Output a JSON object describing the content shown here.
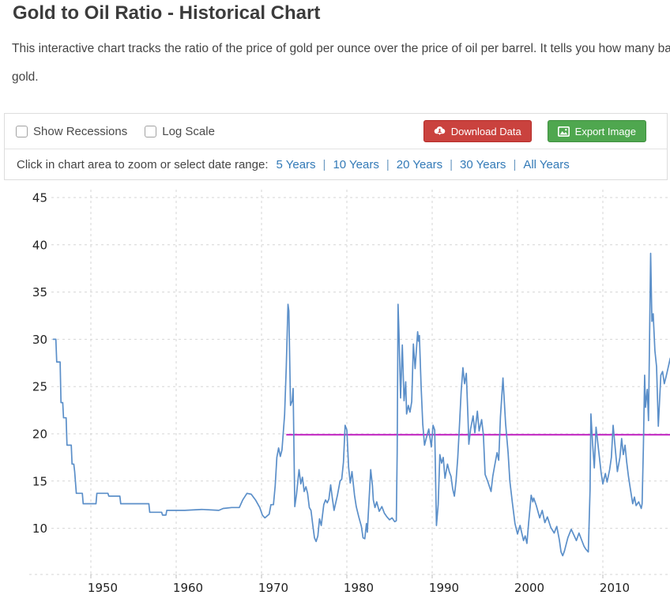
{
  "page": {
    "title": "Gold to Oil Ratio - Historical Chart",
    "description_line1": "This interactive chart tracks the ratio of the price of gold per ounce over the price of oil per barrel. It tells you how many barrels of oil you can buy with one ounce of",
    "description_line2": "gold."
  },
  "toolbar": {
    "checkboxes": [
      {
        "label": "Show Recessions",
        "checked": false
      },
      {
        "label": "Log Scale",
        "checked": false
      }
    ],
    "download_button": {
      "label": "Download Data",
      "color": "#ca423e",
      "icon": "cloud-download-icon"
    },
    "export_button": {
      "label": "Export Image",
      "color": "#4fa74f",
      "icon": "image-icon"
    },
    "zoom_hint": "Click in chart area to zoom or select date range:",
    "separator": "|",
    "link_color": "#337ab7",
    "range_links": [
      {
        "label": "5 Years"
      },
      {
        "label": "10 Years"
      },
      {
        "label": "20 Years"
      },
      {
        "label": "30 Years"
      },
      {
        "label": "All Years"
      }
    ]
  },
  "chart_data": {
    "type": "line",
    "title": "Gold to Oil Ratio - Historical Chart",
    "xlabel": "",
    "ylabel": "",
    "grid": true,
    "x_ticks": [
      1950,
      1960,
      1970,
      1980,
      1990,
      2000,
      2010
    ],
    "y_ticks": [
      10,
      15,
      20,
      25,
      30,
      35,
      40,
      45
    ],
    "xlim": [
      1945.6,
      2017.9
    ],
    "ylim": [
      5.1,
      45.8
    ],
    "line_color": "#5b8fc9",
    "grid_color": "#d6d6d6",
    "axis_label_color": "#222222",
    "reference_line": {
      "value": 19.9,
      "start_year": 1972.9,
      "color": "#c32cc3"
    },
    "series": [
      {
        "name": "Gold to Oil Ratio",
        "points": [
          [
            1945.6,
            30
          ],
          [
            1945.9,
            30
          ],
          [
            1946.0,
            27.6
          ],
          [
            1946.4,
            27.6
          ],
          [
            1946.5,
            23.3
          ],
          [
            1946.7,
            23.3
          ],
          [
            1946.8,
            21.7
          ],
          [
            1947.1,
            21.7
          ],
          [
            1947.2,
            18.8
          ],
          [
            1947.7,
            18.8
          ],
          [
            1947.8,
            16.8
          ],
          [
            1948.0,
            16.8
          ],
          [
            1948.1,
            16.0
          ],
          [
            1948.3,
            13.7
          ],
          [
            1949.0,
            13.7
          ],
          [
            1949.1,
            12.6
          ],
          [
            1950.6,
            12.6
          ],
          [
            1950.7,
            13.7
          ],
          [
            1952.0,
            13.7
          ],
          [
            1952.1,
            13.4
          ],
          [
            1953.4,
            13.4
          ],
          [
            1953.5,
            12.6
          ],
          [
            1956.8,
            12.6
          ],
          [
            1956.9,
            11.7
          ],
          [
            1958.3,
            11.7
          ],
          [
            1958.4,
            11.4
          ],
          [
            1958.8,
            11.4
          ],
          [
            1958.9,
            11.9
          ],
          [
            1961.0,
            11.9
          ],
          [
            1963.0,
            12.0
          ],
          [
            1965.0,
            11.9
          ],
          [
            1965.5,
            12.1
          ],
          [
            1966.5,
            12.2
          ],
          [
            1967.4,
            12.2
          ],
          [
            1967.8,
            13.0
          ],
          [
            1968.3,
            13.7
          ],
          [
            1968.8,
            13.6
          ],
          [
            1969.3,
            13.0
          ],
          [
            1969.8,
            12.2
          ],
          [
            1970.1,
            11.4
          ],
          [
            1970.4,
            11.1
          ],
          [
            1970.9,
            11.5
          ],
          [
            1971.1,
            12.5
          ],
          [
            1971.4,
            12.5
          ],
          [
            1971.6,
            14.5
          ],
          [
            1971.8,
            17.5
          ],
          [
            1972.0,
            18.5
          ],
          [
            1972.2,
            17.6
          ],
          [
            1972.4,
            18.3
          ],
          [
            1972.7,
            22.0
          ],
          [
            1972.9,
            27.0
          ],
          [
            1973.1,
            33.7
          ],
          [
            1973.2,
            33.0
          ],
          [
            1973.4,
            23.0
          ],
          [
            1973.6,
            23.5
          ],
          [
            1973.7,
            24.8
          ],
          [
            1973.9,
            12.3
          ],
          [
            1974.1,
            13.6
          ],
          [
            1974.4,
            16.2
          ],
          [
            1974.6,
            14.7
          ],
          [
            1974.8,
            15.4
          ],
          [
            1975.0,
            13.9
          ],
          [
            1975.2,
            14.4
          ],
          [
            1975.4,
            13.7
          ],
          [
            1975.6,
            12.2
          ],
          [
            1975.8,
            11.9
          ],
          [
            1976.0,
            10.4
          ],
          [
            1976.2,
            9.0
          ],
          [
            1976.4,
            8.6
          ],
          [
            1976.6,
            9.2
          ],
          [
            1976.8,
            11.0
          ],
          [
            1977.0,
            10.3
          ],
          [
            1977.3,
            12.5
          ],
          [
            1977.5,
            13.0
          ],
          [
            1977.7,
            12.7
          ],
          [
            1977.9,
            13.1
          ],
          [
            1978.1,
            14.6
          ],
          [
            1978.3,
            13.2
          ],
          [
            1978.5,
            11.9
          ],
          [
            1978.9,
            13.5
          ],
          [
            1979.2,
            15.0
          ],
          [
            1979.4,
            15.2
          ],
          [
            1979.6,
            17.0
          ],
          [
            1979.8,
            20.9
          ],
          [
            1980.0,
            20.4
          ],
          [
            1980.2,
            16.5
          ],
          [
            1980.4,
            14.8
          ],
          [
            1980.6,
            16.0
          ],
          [
            1980.9,
            13.5
          ],
          [
            1981.1,
            12.3
          ],
          [
            1981.4,
            11.2
          ],
          [
            1981.7,
            10.2
          ],
          [
            1981.9,
            9.0
          ],
          [
            1982.1,
            8.9
          ],
          [
            1982.3,
            10.5
          ],
          [
            1982.4,
            9.6
          ],
          [
            1982.6,
            13.0
          ],
          [
            1982.8,
            16.2
          ],
          [
            1983.0,
            14.5
          ],
          [
            1983.1,
            13.0
          ],
          [
            1983.3,
            12.2
          ],
          [
            1983.5,
            12.8
          ],
          [
            1983.8,
            11.8
          ],
          [
            1984.1,
            12.3
          ],
          [
            1984.4,
            11.6
          ],
          [
            1984.7,
            11.2
          ],
          [
            1985.0,
            10.9
          ],
          [
            1985.3,
            11.1
          ],
          [
            1985.6,
            10.7
          ],
          [
            1985.8,
            10.8
          ],
          [
            1985.9,
            18.0
          ],
          [
            1986.0,
            33.7
          ],
          [
            1986.1,
            30.9
          ],
          [
            1986.3,
            23.8
          ],
          [
            1986.5,
            29.4
          ],
          [
            1986.7,
            23.5
          ],
          [
            1986.9,
            25.5
          ],
          [
            1987.0,
            22.1
          ],
          [
            1987.2,
            23.0
          ],
          [
            1987.4,
            22.3
          ],
          [
            1987.6,
            23.4
          ],
          [
            1987.8,
            29.5
          ],
          [
            1988.0,
            26.9
          ],
          [
            1988.3,
            30.8
          ],
          [
            1988.4,
            29.8
          ],
          [
            1988.5,
            30.4
          ],
          [
            1988.7,
            25.0
          ],
          [
            1988.9,
            21.0
          ],
          [
            1989.1,
            18.8
          ],
          [
            1989.3,
            19.5
          ],
          [
            1989.6,
            20.5
          ],
          [
            1989.9,
            18.6
          ],
          [
            1990.1,
            20.9
          ],
          [
            1990.3,
            20.4
          ],
          [
            1990.5,
            10.3
          ],
          [
            1990.7,
            12.5
          ],
          [
            1990.9,
            17.8
          ],
          [
            1991.1,
            16.9
          ],
          [
            1991.3,
            17.5
          ],
          [
            1991.5,
            15.3
          ],
          [
            1991.8,
            16.8
          ],
          [
            1992.0,
            16.0
          ],
          [
            1992.2,
            15.5
          ],
          [
            1992.4,
            14.2
          ],
          [
            1992.6,
            13.4
          ],
          [
            1992.8,
            15.0
          ],
          [
            1993.0,
            17.5
          ],
          [
            1993.2,
            21.0
          ],
          [
            1993.4,
            24.5
          ],
          [
            1993.6,
            27.0
          ],
          [
            1993.8,
            25.3
          ],
          [
            1994.0,
            26.4
          ],
          [
            1994.2,
            21.5
          ],
          [
            1994.3,
            18.9
          ],
          [
            1994.5,
            20.5
          ],
          [
            1994.8,
            21.9
          ],
          [
            1995.0,
            20.1
          ],
          [
            1995.3,
            22.4
          ],
          [
            1995.5,
            20.3
          ],
          [
            1995.8,
            21.5
          ],
          [
            1996.0,
            19.9
          ],
          [
            1996.2,
            15.7
          ],
          [
            1996.5,
            15.0
          ],
          [
            1996.9,
            13.9
          ],
          [
            1997.1,
            15.5
          ],
          [
            1997.3,
            16.5
          ],
          [
            1997.6,
            18.0
          ],
          [
            1997.8,
            17.2
          ],
          [
            1998.0,
            21.8
          ],
          [
            1998.3,
            25.9
          ],
          [
            1998.6,
            21.1
          ],
          [
            1998.9,
            18.0
          ],
          [
            1999.1,
            15.0
          ],
          [
            1999.4,
            12.7
          ],
          [
            1999.7,
            10.5
          ],
          [
            2000.0,
            9.4
          ],
          [
            2000.3,
            10.3
          ],
          [
            2000.7,
            8.7
          ],
          [
            2000.9,
            9.2
          ],
          [
            2001.1,
            8.4
          ],
          [
            2001.3,
            10.5
          ],
          [
            2001.6,
            13.5
          ],
          [
            2001.8,
            12.8
          ],
          [
            2001.9,
            13.2
          ],
          [
            2002.2,
            12.4
          ],
          [
            2002.6,
            11.1
          ],
          [
            2002.9,
            11.9
          ],
          [
            2003.2,
            10.6
          ],
          [
            2003.5,
            11.2
          ],
          [
            2003.9,
            10.1
          ],
          [
            2004.3,
            9.5
          ],
          [
            2004.6,
            10.2
          ],
          [
            2004.9,
            8.8
          ],
          [
            2005.1,
            7.5
          ],
          [
            2005.3,
            7.1
          ],
          [
            2005.5,
            7.6
          ],
          [
            2005.9,
            9.0
          ],
          [
            2006.3,
            9.9
          ],
          [
            2006.6,
            9.3
          ],
          [
            2006.9,
            8.7
          ],
          [
            2007.2,
            9.5
          ],
          [
            2007.5,
            8.8
          ],
          [
            2007.8,
            8.1
          ],
          [
            2008.0,
            7.8
          ],
          [
            2008.3,
            7.5
          ],
          [
            2008.5,
            14.0
          ],
          [
            2008.6,
            22.1
          ],
          [
            2008.8,
            19.0
          ],
          [
            2009.0,
            16.4
          ],
          [
            2009.2,
            20.7
          ],
          [
            2009.5,
            18.3
          ],
          [
            2009.8,
            15.9
          ],
          [
            2010.0,
            14.7
          ],
          [
            2010.3,
            15.8
          ],
          [
            2010.5,
            14.9
          ],
          [
            2010.8,
            16.2
          ],
          [
            2011.0,
            17.5
          ],
          [
            2011.2,
            20.9
          ],
          [
            2011.5,
            18.0
          ],
          [
            2011.7,
            16.0
          ],
          [
            2012.0,
            17.5
          ],
          [
            2012.2,
            19.5
          ],
          [
            2012.4,
            17.8
          ],
          [
            2012.6,
            18.8
          ],
          [
            2012.8,
            17.0
          ],
          [
            2013.0,
            15.5
          ],
          [
            2013.2,
            14.3
          ],
          [
            2013.5,
            12.6
          ],
          [
            2013.7,
            13.3
          ],
          [
            2013.9,
            12.4
          ],
          [
            2014.2,
            12.8
          ],
          [
            2014.5,
            12.1
          ],
          [
            2014.6,
            12.6
          ],
          [
            2014.75,
            18.5
          ],
          [
            2014.9,
            26.2
          ],
          [
            2015.0,
            22.8
          ],
          [
            2015.2,
            24.7
          ],
          [
            2015.35,
            21.4
          ],
          [
            2015.6,
            39.1
          ],
          [
            2015.75,
            31.9
          ],
          [
            2015.9,
            32.7
          ],
          [
            2016.1,
            28.8
          ],
          [
            2016.3,
            27.1
          ],
          [
            2016.5,
            20.8
          ],
          [
            2016.8,
            26.2
          ],
          [
            2017.0,
            26.6
          ],
          [
            2017.2,
            25.3
          ],
          [
            2017.4,
            26.0
          ],
          [
            2017.6,
            26.8
          ],
          [
            2017.9,
            28.0
          ]
        ]
      }
    ]
  }
}
